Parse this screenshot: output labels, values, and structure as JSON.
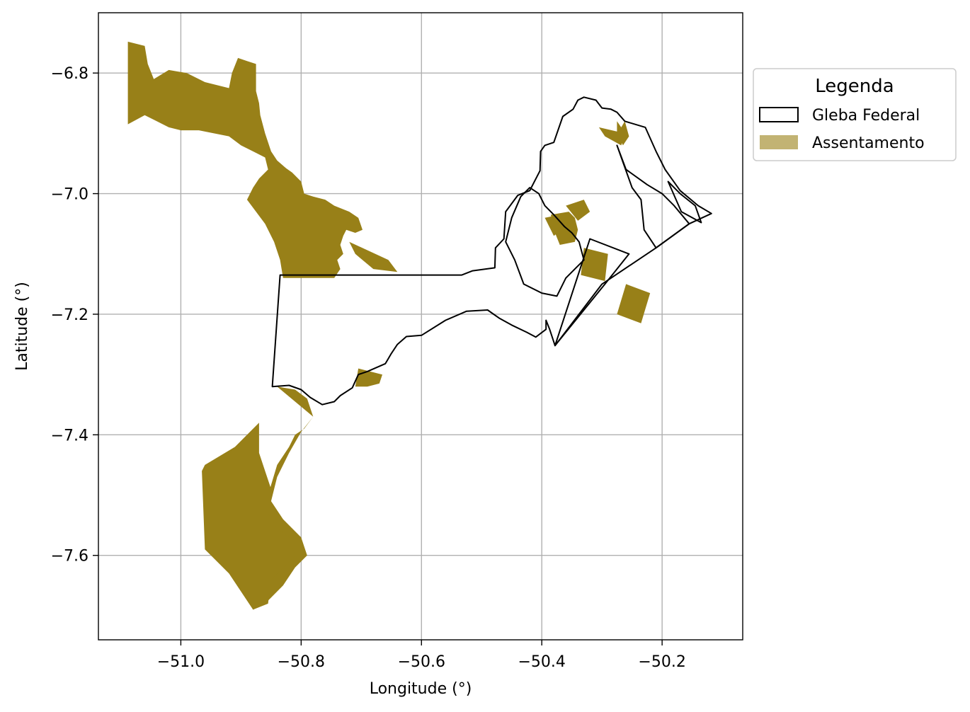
{
  "chart_data": {
    "type": "map",
    "xlabel": "Longitude (°)",
    "ylabel": "Latitude (°)",
    "xlim": [
      -51.137,
      -50.066
    ],
    "ylim": [
      -7.74,
      -6.7
    ],
    "grid": true,
    "xticks": [
      -51.0,
      -50.8,
      -50.6,
      -50.4,
      -50.2
    ],
    "xtick_labels": [
      "−51.0",
      "−50.8",
      "−50.6",
      "−50.4",
      "−50.2"
    ],
    "yticks": [
      -6.8,
      -7.0,
      -7.2,
      -7.4,
      -7.6
    ],
    "ytick_labels": [
      "−6.8",
      "−7.0",
      "−7.2",
      "−7.4",
      "−7.6"
    ],
    "legend": {
      "title": "Legenda",
      "position": "outside-upper-right",
      "entries": [
        {
          "label": "Gleba Federal",
          "style": "outline",
          "color": "#000000"
        },
        {
          "label": "Assentamento",
          "style": "fill",
          "color": "#c2b373"
        }
      ]
    },
    "colors": {
      "assentamento_fill": "#988018",
      "gleba_edge": "#000000",
      "grid": "#b0b0b0"
    },
    "gleba_federal": [
      {
        "name": "gleba-main",
        "coords": [
          [
            -50.835,
            -7.135
          ],
          [
            -50.533,
            -7.135
          ],
          [
            -50.515,
            -7.128
          ],
          [
            -50.478,
            -7.123
          ],
          [
            -50.477,
            -7.09
          ],
          [
            -50.463,
            -7.075
          ],
          [
            -50.46,
            -7.03
          ],
          [
            -50.44,
            -7.003
          ],
          [
            -50.42,
            -6.995
          ],
          [
            -50.403,
            -6.962
          ],
          [
            -50.402,
            -6.93
          ],
          [
            -50.395,
            -6.92
          ],
          [
            -50.38,
            -6.915
          ],
          [
            -50.365,
            -6.872
          ],
          [
            -50.348,
            -6.86
          ],
          [
            -50.34,
            -6.845
          ],
          [
            -50.33,
            -6.84
          ],
          [
            -50.31,
            -6.845
          ],
          [
            -50.3,
            -6.858
          ],
          [
            -50.285,
            -6.86
          ],
          [
            -50.275,
            -6.865
          ],
          [
            -50.262,
            -6.88
          ],
          [
            -50.228,
            -6.89
          ],
          [
            -50.21,
            -6.93
          ],
          [
            -50.195,
            -6.96
          ],
          [
            -50.17,
            -6.995
          ],
          [
            -50.14,
            -7.02
          ],
          [
            -50.118,
            -7.033
          ],
          [
            -50.155,
            -7.05
          ],
          [
            -50.21,
            -7.09
          ],
          [
            -50.3,
            -7.15
          ],
          [
            -50.378,
            -7.252
          ],
          [
            -50.387,
            -7.225
          ],
          [
            -50.393,
            -7.21
          ],
          [
            -50.393,
            -7.225
          ],
          [
            -50.41,
            -7.238
          ],
          [
            -50.425,
            -7.23
          ],
          [
            -50.45,
            -7.218
          ],
          [
            -50.47,
            -7.207
          ],
          [
            -50.48,
            -7.2
          ],
          [
            -50.49,
            -7.193
          ],
          [
            -50.525,
            -7.195
          ],
          [
            -50.56,
            -7.21
          ],
          [
            -50.6,
            -7.235
          ],
          [
            -50.625,
            -7.237
          ],
          [
            -50.64,
            -7.25
          ],
          [
            -50.65,
            -7.265
          ],
          [
            -50.66,
            -7.282
          ],
          [
            -50.69,
            -7.295
          ],
          [
            -50.705,
            -7.3
          ],
          [
            -50.715,
            -7.322
          ],
          [
            -50.735,
            -7.335
          ],
          [
            -50.745,
            -7.345
          ],
          [
            -50.765,
            -7.35
          ],
          [
            -50.785,
            -7.338
          ],
          [
            -50.8,
            -7.325
          ],
          [
            -50.82,
            -7.318
          ],
          [
            -50.848,
            -7.32
          ],
          [
            -50.835,
            -7.135
          ]
        ]
      },
      {
        "name": "gleba-south-strip",
        "coords": [
          [
            -50.378,
            -7.252
          ],
          [
            -50.32,
            -7.075
          ],
          [
            -50.255,
            -7.1
          ],
          [
            -50.295,
            -7.15
          ],
          [
            -50.378,
            -7.252
          ]
        ]
      },
      {
        "name": "gleba-right-block",
        "coords": [
          [
            -50.275,
            -6.92
          ],
          [
            -50.26,
            -6.96
          ],
          [
            -50.225,
            -6.985
          ],
          [
            -50.2,
            -7.0
          ],
          [
            -50.18,
            -7.02
          ],
          [
            -50.155,
            -7.05
          ],
          [
            -50.21,
            -7.09
          ],
          [
            -50.23,
            -7.06
          ],
          [
            -50.235,
            -7.01
          ],
          [
            -50.25,
            -6.99
          ],
          [
            -50.275,
            -6.92
          ]
        ]
      },
      {
        "name": "gleba-east-tip",
        "coords": [
          [
            -50.19,
            -6.98
          ],
          [
            -50.168,
            -7.03
          ],
          [
            -50.135,
            -7.048
          ],
          [
            -50.145,
            -7.02
          ],
          [
            -50.17,
            -7.0
          ],
          [
            -50.19,
            -6.98
          ]
        ]
      },
      {
        "name": "gleba-inner-strip",
        "coords": [
          [
            -50.43,
            -7.15
          ],
          [
            -50.4,
            -7.165
          ],
          [
            -50.375,
            -7.17
          ],
          [
            -50.36,
            -7.14
          ],
          [
            -50.345,
            -7.125
          ],
          [
            -50.33,
            -7.11
          ],
          [
            -50.338,
            -7.08
          ],
          [
            -50.35,
            -7.065
          ],
          [
            -50.362,
            -7.055
          ],
          [
            -50.38,
            -7.035
          ],
          [
            -50.395,
            -7.02
          ],
          [
            -50.405,
            -7.0
          ],
          [
            -50.42,
            -6.99
          ],
          [
            -50.435,
            -7.005
          ],
          [
            -50.45,
            -7.04
          ],
          [
            -50.46,
            -7.08
          ],
          [
            -50.445,
            -7.11
          ],
          [
            -50.43,
            -7.15
          ]
        ]
      }
    ],
    "assentamento": [
      {
        "name": "asentamento-northwest",
        "coords": [
          [
            -51.088,
            -6.748
          ],
          [
            -51.06,
            -6.755
          ],
          [
            -51.055,
            -6.785
          ],
          [
            -51.045,
            -6.81
          ],
          [
            -51.02,
            -6.795
          ],
          [
            -50.99,
            -6.8
          ],
          [
            -50.96,
            -6.815
          ],
          [
            -50.92,
            -6.825
          ],
          [
            -50.915,
            -6.8
          ],
          [
            -50.905,
            -6.775
          ],
          [
            -50.89,
            -6.78
          ],
          [
            -50.875,
            -6.785
          ],
          [
            -50.875,
            -6.83
          ],
          [
            -50.87,
            -6.85
          ],
          [
            -50.868,
            -6.87
          ],
          [
            -50.86,
            -6.9
          ],
          [
            -50.85,
            -6.93
          ],
          [
            -50.84,
            -6.945
          ],
          [
            -50.825,
            -6.958
          ],
          [
            -50.815,
            -6.965
          ],
          [
            -50.8,
            -6.98
          ],
          [
            -50.795,
            -7.0
          ],
          [
            -50.78,
            -7.005
          ],
          [
            -50.76,
            -7.01
          ],
          [
            -50.745,
            -7.02
          ],
          [
            -50.72,
            -7.03
          ],
          [
            -50.705,
            -7.04
          ],
          [
            -50.698,
            -7.06
          ],
          [
            -50.71,
            -7.065
          ],
          [
            -50.725,
            -7.06
          ],
          [
            -50.73,
            -7.07
          ],
          [
            -50.735,
            -7.085
          ],
          [
            -50.73,
            -7.1
          ],
          [
            -50.74,
            -7.11
          ],
          [
            -50.735,
            -7.125
          ],
          [
            -50.745,
            -7.14
          ],
          [
            -50.82,
            -7.14
          ],
          [
            -50.83,
            -7.14
          ],
          [
            -50.835,
            -7.11
          ],
          [
            -50.845,
            -7.08
          ],
          [
            -50.86,
            -7.05
          ],
          [
            -50.875,
            -7.03
          ],
          [
            -50.89,
            -7.01
          ],
          [
            -50.88,
            -6.99
          ],
          [
            -50.87,
            -6.975
          ],
          [
            -50.855,
            -6.96
          ],
          [
            -50.86,
            -6.94
          ],
          [
            -50.88,
            -6.93
          ],
          [
            -50.9,
            -6.92
          ],
          [
            -50.92,
            -6.905
          ],
          [
            -50.945,
            -6.9
          ],
          [
            -50.97,
            -6.895
          ],
          [
            -51.0,
            -6.895
          ],
          [
            -51.02,
            -6.89
          ],
          [
            -51.04,
            -6.88
          ],
          [
            -51.06,
            -6.87
          ],
          [
            -51.088,
            -6.885
          ],
          [
            -51.088,
            -6.748
          ]
        ]
      },
      {
        "name": "asentamento-center-west",
        "coords": [
          [
            -50.72,
            -7.08
          ],
          [
            -50.655,
            -7.11
          ],
          [
            -50.64,
            -7.13
          ],
          [
            -50.68,
            -7.125
          ],
          [
            -50.71,
            -7.1
          ],
          [
            -50.72,
            -7.08
          ]
        ]
      },
      {
        "name": "asentamento-south-west",
        "coords": [
          [
            -50.84,
            -7.32
          ],
          [
            -50.81,
            -7.325
          ],
          [
            -50.79,
            -7.34
          ],
          [
            -50.78,
            -7.37
          ],
          [
            -50.795,
            -7.39
          ],
          [
            -50.81,
            -7.4
          ],
          [
            -50.82,
            -7.42
          ],
          [
            -50.84,
            -7.45
          ],
          [
            -50.855,
            -7.5
          ],
          [
            -50.87,
            -7.55
          ],
          [
            -50.88,
            -7.58
          ],
          [
            -50.9,
            -7.6
          ],
          [
            -50.92,
            -7.62
          ],
          [
            -50.9,
            -7.65
          ],
          [
            -50.88,
            -7.69
          ],
          [
            -50.86,
            -7.68
          ],
          [
            -50.83,
            -7.65
          ],
          [
            -50.81,
            -7.62
          ],
          [
            -50.79,
            -7.6
          ],
          [
            -50.8,
            -7.57
          ],
          [
            -50.83,
            -7.54
          ],
          [
            -50.85,
            -7.51
          ],
          [
            -50.84,
            -7.47
          ],
          [
            -50.82,
            -7.43
          ],
          [
            -50.8,
            -7.395
          ],
          [
            -50.78,
            -7.37
          ],
          [
            -50.84,
            -7.32
          ]
        ]
      },
      {
        "name": "asentamento-south-main",
        "coords": [
          [
            -50.87,
            -7.38
          ],
          [
            -50.91,
            -7.42
          ],
          [
            -50.96,
            -7.45
          ],
          [
            -50.965,
            -7.46
          ],
          [
            -50.96,
            -7.59
          ],
          [
            -50.92,
            -7.63
          ],
          [
            -50.88,
            -7.69
          ],
          [
            -50.855,
            -7.68
          ],
          [
            -50.85,
            -7.64
          ],
          [
            -50.83,
            -7.62
          ],
          [
            -50.81,
            -7.6
          ],
          [
            -50.82,
            -7.57
          ],
          [
            -50.84,
            -7.555
          ],
          [
            -50.855,
            -7.53
          ],
          [
            -50.85,
            -7.49
          ],
          [
            -50.86,
            -7.46
          ],
          [
            -50.87,
            -7.43
          ],
          [
            -50.87,
            -7.38
          ]
        ]
      },
      {
        "name": "asentamento-south-center",
        "coords": [
          [
            -50.705,
            -7.29
          ],
          [
            -50.665,
            -7.3
          ],
          [
            -50.67,
            -7.315
          ],
          [
            -50.69,
            -7.32
          ],
          [
            -50.71,
            -7.32
          ],
          [
            -50.705,
            -7.29
          ]
        ]
      },
      {
        "name": "asentamento-north-east-strip",
        "coords": [
          [
            -50.305,
            -6.89
          ],
          [
            -50.262,
            -6.9
          ],
          [
            -50.268,
            -6.92
          ],
          [
            -50.295,
            -6.905
          ],
          [
            -50.305,
            -6.89
          ]
        ]
      },
      {
        "name": "asentamento-north-east-patch",
        "coords": [
          [
            -50.275,
            -6.88
          ],
          [
            -50.268,
            -6.89
          ],
          [
            -50.262,
            -6.88
          ],
          [
            -50.255,
            -6.905
          ],
          [
            -50.265,
            -6.92
          ],
          [
            -50.275,
            -6.9
          ],
          [
            -50.275,
            -6.88
          ]
        ]
      },
      {
        "name": "asentamento-east-center",
        "coords": [
          [
            -50.385,
            -7.035
          ],
          [
            -50.355,
            -7.03
          ],
          [
            -50.345,
            -7.04
          ],
          [
            -50.34,
            -7.06
          ],
          [
            -50.345,
            -7.08
          ],
          [
            -50.37,
            -7.085
          ],
          [
            -50.38,
            -7.06
          ],
          [
            -50.385,
            -7.035
          ]
        ]
      },
      {
        "name": "asentamento-east-small",
        "coords": [
          [
            -50.36,
            -7.02
          ],
          [
            -50.33,
            -7.01
          ],
          [
            -50.32,
            -7.03
          ],
          [
            -50.34,
            -7.045
          ],
          [
            -50.36,
            -7.02
          ]
        ]
      },
      {
        "name": "asentamento-east-middle",
        "coords": [
          [
            -50.33,
            -7.09
          ],
          [
            -50.29,
            -7.1
          ],
          [
            -50.295,
            -7.145
          ],
          [
            -50.335,
            -7.135
          ],
          [
            -50.33,
            -7.09
          ]
        ]
      },
      {
        "name": "asentamento-east-south",
        "coords": [
          [
            -50.26,
            -7.15
          ],
          [
            -50.22,
            -7.165
          ],
          [
            -50.235,
            -7.215
          ],
          [
            -50.275,
            -7.2
          ],
          [
            -50.26,
            -7.15
          ]
        ]
      },
      {
        "name": "asentamento-mid-inner",
        "coords": [
          [
            -50.395,
            -7.04
          ],
          [
            -50.37,
            -7.035
          ],
          [
            -50.36,
            -7.055
          ],
          [
            -50.38,
            -7.07
          ],
          [
            -50.395,
            -7.04
          ]
        ]
      }
    ]
  }
}
